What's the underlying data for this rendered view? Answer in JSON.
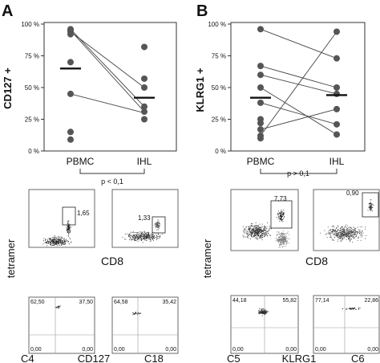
{
  "panels": {
    "A": {
      "letter": "A",
      "chart": {
        "ylabel": "CD127 +",
        "yticks": [
          "0 %",
          "25 %",
          "50 %",
          "75 %",
          "100 %"
        ],
        "xcats": [
          "PBMC",
          "IHL"
        ],
        "stat": "p < 0,1",
        "pbmc": [
          96,
          95,
          94,
          92,
          70,
          45,
          15,
          9
        ],
        "ihl": [
          82,
          57,
          50,
          35,
          31,
          25
        ],
        "median_pbmc": 65,
        "median_ihl": 42,
        "lines": [
          [
            96,
            35
          ],
          [
            95,
            31
          ],
          [
            94,
            50
          ],
          [
            45,
            30
          ]
        ]
      },
      "flow_top": [
        {
          "value": "1,65"
        },
        {
          "value": "1,33"
        }
      ],
      "flow_bottom": [
        {
          "ul": "62,50",
          "ur": "37,50",
          "ll": "0,00",
          "lr": "0,00",
          "id": "C4"
        },
        {
          "ul": "64,58",
          "ur": "35,42",
          "ll": "0,00",
          "lr": "0,00",
          "id": "C18"
        }
      ],
      "ylabel_flow": "tetramer",
      "xlabel_top": "CD8",
      "xlabel_bottom": "CD127"
    },
    "B": {
      "letter": "B",
      "chart": {
        "ylabel": "KLRG1 +",
        "yticks": [
          "0 %",
          "25 %",
          "50 %",
          "75 %",
          "100 %"
        ],
        "xcats": [
          "PBMC",
          "IHL"
        ],
        "stat": "p > 0,1",
        "pbmc": [
          96,
          67,
          60,
          50,
          38,
          25,
          22,
          17,
          12,
          10
        ],
        "ihl": [
          94,
          73,
          50,
          45,
          33,
          21,
          13
        ],
        "median_pbmc": 42,
        "median_ihl": 44,
        "lines": [
          [
            96,
            73
          ],
          [
            67,
            50
          ],
          [
            60,
            45
          ],
          [
            50,
            13
          ],
          [
            38,
            21
          ],
          [
            17,
            33
          ],
          [
            12,
            94
          ]
        ]
      },
      "flow_top": [
        {
          "value": "7,73"
        },
        {
          "value": "0,90"
        }
      ],
      "flow_bottom": [
        {
          "ul": "44,18",
          "ur": "55,82",
          "ll": "0,00",
          "lr": "0,00",
          "id": "C5"
        },
        {
          "ul": "77,14",
          "ur": "22,86",
          "ll": "0,00",
          "lr": "0,00",
          "id": "C6"
        }
      ],
      "ylabel_flow": "tetramer",
      "xlabel_top": "CD8",
      "xlabel_bottom": "KLRG1"
    }
  }
}
